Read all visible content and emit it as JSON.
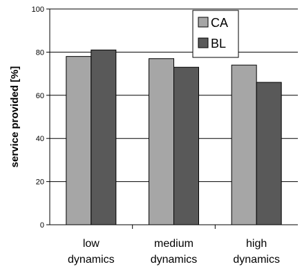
{
  "chart_data": {
    "type": "bar",
    "categories": [
      [
        "low",
        "dynamics"
      ],
      [
        "medium",
        "dynamics"
      ],
      [
        "high",
        "dynamics"
      ]
    ],
    "series": [
      {
        "name": "CA",
        "color": "#a6a6a6",
        "values": [
          78,
          77,
          74
        ]
      },
      {
        "name": "BL",
        "color": "#595959",
        "values": [
          81,
          73,
          66
        ]
      }
    ],
    "title": "",
    "xlabel": "",
    "ylabel": "service provided [%]",
    "ylim": [
      0,
      100
    ],
    "yticks": [
      0,
      20,
      40,
      60,
      80,
      100
    ],
    "grid": true,
    "legend_position": "top-right"
  }
}
